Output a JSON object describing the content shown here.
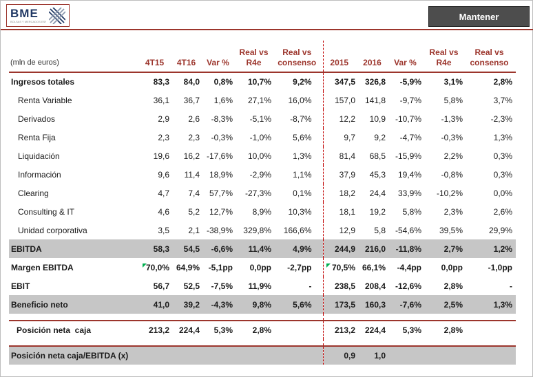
{
  "header": {
    "logo_text": "BME",
    "logo_tagline": "BOLSAS Y MERCADOS ESPAÑOLES",
    "rating_label": "Mantener"
  },
  "colors": {
    "accent_red": "#9C352C",
    "dashed_red": "#C00000",
    "band_gray": "#C6C6C6",
    "rating_bg": "#4D4D4D",
    "logo_navy": "#203864",
    "flag_green": "#00B050"
  },
  "table": {
    "unit_label": "(mln de euros)",
    "columns": [
      [
        "4T15"
      ],
      [
        "4T16"
      ],
      [
        "Var %"
      ],
      [
        "Real vs",
        "R4e"
      ],
      [
        "Real vs",
        "consenso"
      ],
      [
        "2015"
      ],
      [
        "2016"
      ],
      [
        "Var %"
      ],
      [
        "Real vs",
        "R4e"
      ],
      [
        "Real vs",
        "consenso"
      ]
    ],
    "rows": [
      {
        "label": "Ingresos totales",
        "classes": "bold",
        "values": [
          "83,3",
          "84,0",
          "0,8%",
          "10,7%",
          "9,2%",
          "347,5",
          "326,8",
          "-5,9%",
          "3,1%",
          "2,8%"
        ]
      },
      {
        "label": "Renta Variable",
        "classes": "sub",
        "values": [
          "36,1",
          "36,7",
          "1,6%",
          "27,1%",
          "16,0%",
          "157,0",
          "141,8",
          "-9,7%",
          "5,8%",
          "3,7%"
        ]
      },
      {
        "label": "Derivados",
        "classes": "sub",
        "values": [
          "2,9",
          "2,6",
          "-8,3%",
          "-5,1%",
          "-8,7%",
          "12,2",
          "10,9",
          "-10,7%",
          "-1,3%",
          "-2,3%"
        ]
      },
      {
        "label": "Renta Fija",
        "classes": "sub",
        "values": [
          "2,3",
          "2,3",
          "-0,3%",
          "-1,0%",
          "5,6%",
          "9,7",
          "9,2",
          "-4,7%",
          "-0,3%",
          "1,3%"
        ]
      },
      {
        "label": "Liquidación",
        "classes": "sub",
        "values": [
          "19,6",
          "16,2",
          "-17,6%",
          "10,0%",
          "1,3%",
          "81,4",
          "68,5",
          "-15,9%",
          "2,2%",
          "0,3%"
        ]
      },
      {
        "label": "Información",
        "classes": "sub",
        "values": [
          "9,6",
          "11,4",
          "18,9%",
          "-2,9%",
          "1,1%",
          "37,9",
          "45,3",
          "19,4%",
          "-0,8%",
          "0,3%"
        ]
      },
      {
        "label": "Clearing",
        "classes": "sub",
        "values": [
          "4,7",
          "7,4",
          "57,7%",
          "-27,3%",
          "0,1%",
          "18,2",
          "24,4",
          "33,9%",
          "-10,2%",
          "0,0%"
        ]
      },
      {
        "label": "Consulting & IT",
        "classes": "sub",
        "values": [
          "4,6",
          "5,2",
          "12,7%",
          "8,9%",
          "10,3%",
          "18,1",
          "19,2",
          "5,8%",
          "2,3%",
          "2,6%"
        ]
      },
      {
        "label": "Unidad corporativa",
        "classes": "sub",
        "values": [
          "3,5",
          "2,1",
          "-38,9%",
          "329,8%",
          "166,6%",
          "12,9",
          "5,8",
          "-54,6%",
          "39,5%",
          "29,9%"
        ]
      },
      {
        "label": "EBITDA",
        "classes": "band",
        "values": [
          "58,3",
          "54,5",
          "-6,6%",
          "11,4%",
          "4,9%",
          "244,9",
          "216,0",
          "-11,8%",
          "2,7%",
          "1,2%"
        ]
      },
      {
        "label": "Margen EBITDA",
        "classes": "bold",
        "flags": [
          0,
          5
        ],
        "values": [
          "70,0%",
          "64,9%",
          "-5,1pp",
          "0,0pp",
          "-2,7pp",
          "70,5%",
          "66,1%",
          "-4,4pp",
          "0,0pp",
          "-1,0pp"
        ]
      },
      {
        "label": "EBIT",
        "classes": "bold",
        "values": [
          "56,7",
          "52,5",
          "-7,5%",
          "11,9%",
          "-",
          "238,5",
          "208,4",
          "-12,6%",
          "2,8%",
          "-"
        ]
      },
      {
        "label": "Beneficio neto",
        "classes": "band",
        "values": [
          "41,0",
          "39,2",
          "-4,3%",
          "9,8%",
          "5,6%",
          "173,5",
          "160,3",
          "-7,6%",
          "2,5%",
          "1,3%"
        ]
      },
      {
        "label": "Posición neta  caja",
        "classes": "bold topline pos",
        "gap_before": true,
        "values": [
          "213,2",
          "224,4",
          "5,3%",
          "2,8%",
          "",
          "213,2",
          "224,4",
          "5,3%",
          "2,8%",
          ""
        ]
      },
      {
        "label": "Posición neta caja/EBITDA (x)",
        "classes": "band topline",
        "gap_before": true,
        "values": [
          "",
          "",
          "",
          "",
          "",
          "0,9",
          "1,0",
          "",
          "",
          ""
        ]
      }
    ]
  }
}
